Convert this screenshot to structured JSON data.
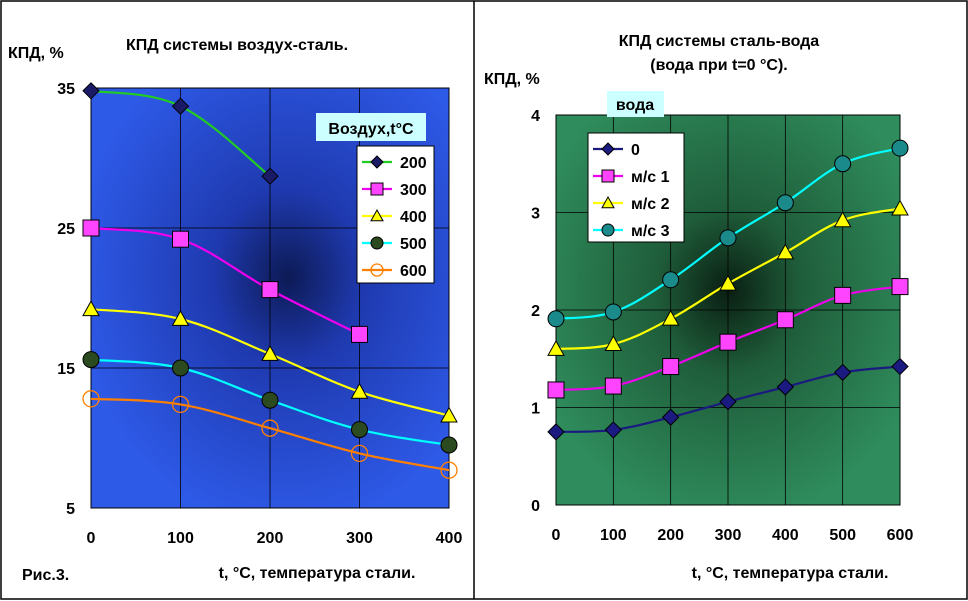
{
  "figure_caption": "Рис.3.",
  "chart_data": [
    {
      "type": "line",
      "title": "КПД системы воздух-сталь.",
      "ylabel": "КПД, %",
      "xlabel": "t, °C, температура стали.",
      "x": [
        0,
        100,
        200,
        300,
        400
      ],
      "xlim": [
        0,
        400
      ],
      "ylim": [
        5,
        35
      ],
      "yticks": [
        5,
        15,
        25,
        35
      ],
      "xticks": [
        0,
        100,
        200,
        300,
        400
      ],
      "grid": true,
      "legend_title": "Воздух,t°C",
      "legend_position": "top-right",
      "background": "#2e57e6",
      "series": [
        {
          "name": "200",
          "color": "#22cc22",
          "marker": "diamond",
          "marker_fill": "#1a1a66",
          "values": [
            34.8,
            33.7,
            28.7,
            null,
            null
          ]
        },
        {
          "name": "300",
          "color": "#ee00ee",
          "marker": "square",
          "marker_fill": "#ff44ff",
          "values": [
            25.0,
            24.2,
            20.6,
            17.4,
            null
          ]
        },
        {
          "name": "400",
          "color": "#ffff00",
          "marker": "triangle",
          "marker_fill": "#ffff00",
          "values": [
            19.2,
            18.5,
            16.0,
            13.3,
            11.6
          ]
        },
        {
          "name": "500",
          "color": "#00ffff",
          "marker": "circle",
          "marker_fill": "#2b4a1f",
          "values": [
            15.6,
            15.0,
            12.7,
            10.6,
            9.5
          ]
        },
        {
          "name": "600",
          "color": "#ff8000",
          "marker": "circle-open",
          "marker_fill": "none",
          "values": [
            12.8,
            12.4,
            10.7,
            8.9,
            7.7
          ]
        }
      ]
    },
    {
      "type": "line",
      "title": "КПД системы сталь-вода",
      "subtitle": "(вода при t=0 °C).",
      "ylabel": "КПД, %",
      "xlabel": "t, °C, температура стали.",
      "x": [
        0,
        100,
        200,
        300,
        400,
        500,
        600
      ],
      "xlim": [
        0,
        600
      ],
      "ylim": [
        0,
        4
      ],
      "yticks": [
        0,
        1,
        2,
        3,
        4
      ],
      "xticks": [
        0,
        100,
        200,
        300,
        400,
        500,
        600
      ],
      "grid": true,
      "legend_title": "вода",
      "legend_position": "top-left",
      "background": "#2f8a5a",
      "series": [
        {
          "name": "0",
          "color": "#1a1a80",
          "marker": "diamond",
          "marker_fill": "#1a1a80",
          "values": [
            0.75,
            0.77,
            0.9,
            1.06,
            1.21,
            1.36,
            1.42
          ]
        },
        {
          "name": "м/с 1",
          "color": "#ee00ee",
          "marker": "square",
          "marker_fill": "#ff44ff",
          "values": [
            1.18,
            1.22,
            1.42,
            1.67,
            1.9,
            2.15,
            2.24
          ]
        },
        {
          "name": "м/с 2",
          "color": "#ffff00",
          "marker": "triangle",
          "marker_fill": "#ffff00",
          "values": [
            1.6,
            1.65,
            1.91,
            2.27,
            2.59,
            2.92,
            3.04
          ]
        },
        {
          "name": "м/с 3",
          "color": "#00ffff",
          "marker": "circle",
          "marker_fill": "#1a8a8a",
          "values": [
            1.91,
            1.98,
            2.31,
            2.74,
            3.1,
            3.5,
            3.66
          ]
        }
      ]
    }
  ]
}
